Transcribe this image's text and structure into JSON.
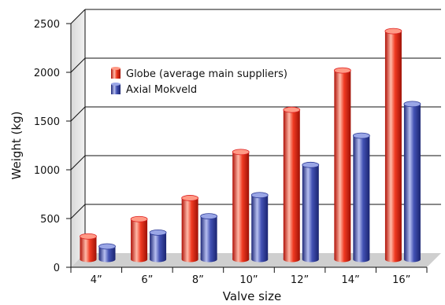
{
  "chart_data": {
    "type": "bar",
    "xlabel": "Valve size",
    "ylabel": "Weight (kg)",
    "ylim": [
      0,
      2500
    ],
    "yticks": [
      0,
      500,
      1000,
      1500,
      2000,
      2500
    ],
    "categories": [
      "4”",
      "6”",
      "8”",
      "10”",
      "12”",
      "14”",
      "16”"
    ],
    "series": [
      {
        "name": "Globe (average main suppliers)",
        "color": "#e8321e",
        "values": [
          240,
          420,
          640,
          1120,
          1560,
          1970,
          2380
        ]
      },
      {
        "name": "Axial Mokveld",
        "color": "#3a4aa8",
        "values": [
          135,
          280,
          450,
          670,
          985,
          1290,
          1620
        ]
      }
    ],
    "grid": true,
    "legend_position": "top-left",
    "style": "3d-cylinders"
  }
}
